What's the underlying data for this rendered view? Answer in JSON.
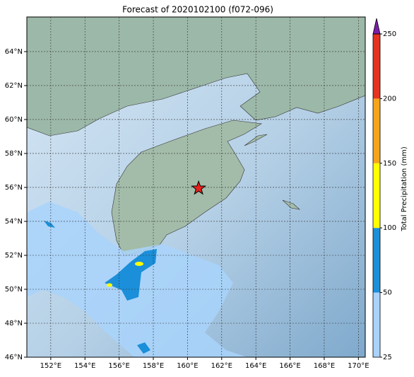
{
  "title": "Forecast of 2020102100 (f072-096)",
  "map": {
    "lon_range": [
      150.6,
      170.4
    ],
    "lat_range": [
      46,
      66.04
    ],
    "lat_ticks": [
      {
        "value": 46,
        "label": "46°N"
      },
      {
        "value": 48,
        "label": "48°N"
      },
      {
        "value": 50,
        "label": "50°N"
      },
      {
        "value": 52,
        "label": "52°N"
      },
      {
        "value": 54,
        "label": "54°N"
      },
      {
        "value": 56,
        "label": "56°N"
      },
      {
        "value": 58,
        "label": "58°N"
      },
      {
        "value": 60,
        "label": "60°N"
      },
      {
        "value": 62,
        "label": "62°N"
      },
      {
        "value": 64,
        "label": "64°N"
      }
    ],
    "lon_ticks": [
      {
        "value": 152,
        "label": "152°E"
      },
      {
        "value": 154,
        "label": "154°E"
      },
      {
        "value": 156,
        "label": "156°E"
      },
      {
        "value": 158,
        "label": "158°E"
      },
      {
        "value": 160,
        "label": "160°E"
      },
      {
        "value": 162,
        "label": "162°E"
      },
      {
        "value": 164,
        "label": "164°E"
      },
      {
        "value": 166,
        "label": "166°E"
      },
      {
        "value": 168,
        "label": "168°E"
      },
      {
        "value": 170,
        "label": "170°E"
      }
    ],
    "marker": {
      "lon": 160.65,
      "lat": 55.95,
      "color": "#e8201c"
    }
  },
  "colorbar": {
    "label": "Total Precipitation (mm)",
    "ticks": [
      25,
      50,
      100,
      150,
      200,
      250
    ],
    "colors": [
      "#a9d3fb",
      "#1b8fd9",
      "#ffff00",
      "#f5a41c",
      "#e5331f"
    ],
    "extend_color": "#7a1fa8"
  }
}
